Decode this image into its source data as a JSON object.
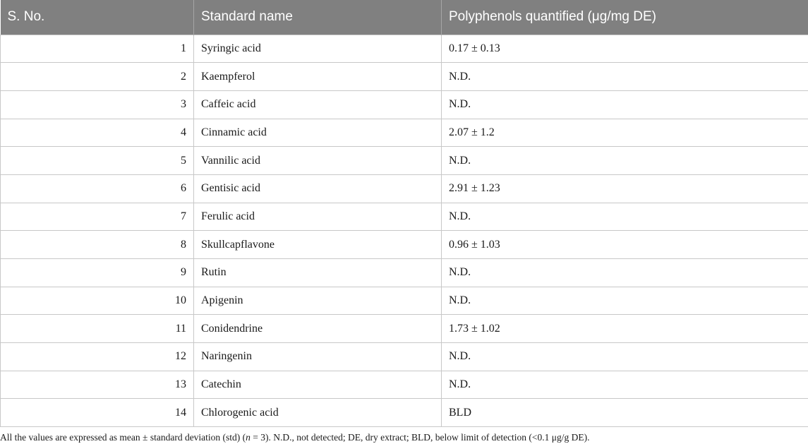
{
  "table": {
    "headers": [
      "S. No.",
      "Standard name",
      "Polyphenols quantified (μg/mg DE)"
    ],
    "rows": [
      [
        "1",
        "Syringic acid",
        "0.17 ± 0.13"
      ],
      [
        "2",
        "Kaempferol",
        "N.D."
      ],
      [
        "3",
        "Caffeic acid",
        "N.D."
      ],
      [
        "4",
        "Cinnamic acid",
        "2.07 ± 1.2"
      ],
      [
        "5",
        "Vannilic acid",
        "N.D."
      ],
      [
        "6",
        "Gentisic acid",
        "2.91 ± 1.23"
      ],
      [
        "7",
        "Ferulic acid",
        "N.D."
      ],
      [
        "8",
        "Skullcapflavone",
        "0.96 ± 1.03"
      ],
      [
        "9",
        "Rutin",
        "N.D."
      ],
      [
        "10",
        "Apigenin",
        "N.D."
      ],
      [
        "11",
        "Conidendrine",
        "1.73 ± 1.02"
      ],
      [
        "12",
        "Naringenin",
        "N.D."
      ],
      [
        "13",
        "Catechin",
        "N.D."
      ],
      [
        "14",
        "Chlorogenic acid",
        "BLD"
      ]
    ]
  },
  "footnote": {
    "before_n": "All the values are expressed as mean ± standard deviation (std) (",
    "n_symbol": "n",
    "after_n": " = 3). N.D., not detected; DE, dry extract; BLD, below limit of detection (<0.1 μg/g DE)."
  },
  "colors": {
    "header_bg": "#808080",
    "header_text": "#ffffff",
    "border": "#c8c8c8"
  }
}
